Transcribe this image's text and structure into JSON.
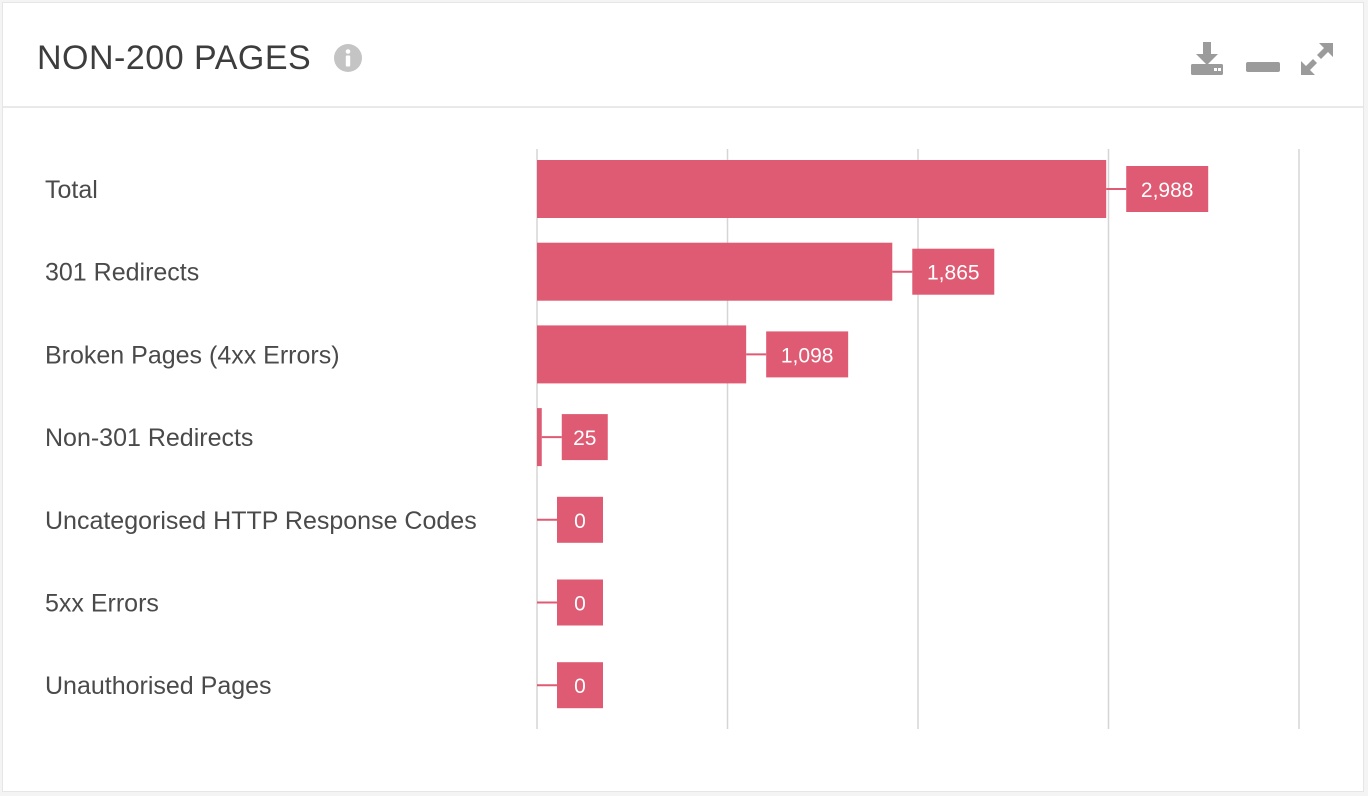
{
  "header": {
    "title": "NON-200 PAGES",
    "icons": [
      "info-icon",
      "download-icon",
      "minimize-icon",
      "expand-icon"
    ]
  },
  "colors": {
    "bar": "#de5b73",
    "grid": "#d5d5d5",
    "text": "#4a4a4a",
    "icon": "#9b9b9b"
  },
  "chart_data": {
    "type": "bar",
    "orientation": "horizontal",
    "categories": [
      "Total",
      "301 Redirects",
      "Broken Pages (4xx Errors)",
      "Non-301 Redirects",
      "Uncategorised HTTP Response Codes",
      "5xx Errors",
      "Unauthorised Pages"
    ],
    "values": [
      2988,
      1865,
      1098,
      25,
      0,
      0,
      0
    ],
    "value_labels": [
      "2,988",
      "1,865",
      "1,098",
      "25",
      "0",
      "0",
      "0"
    ],
    "xlim": [
      0,
      4000
    ],
    "grid_step": 1000,
    "grid": true,
    "legend": "none",
    "data_labels": true
  }
}
